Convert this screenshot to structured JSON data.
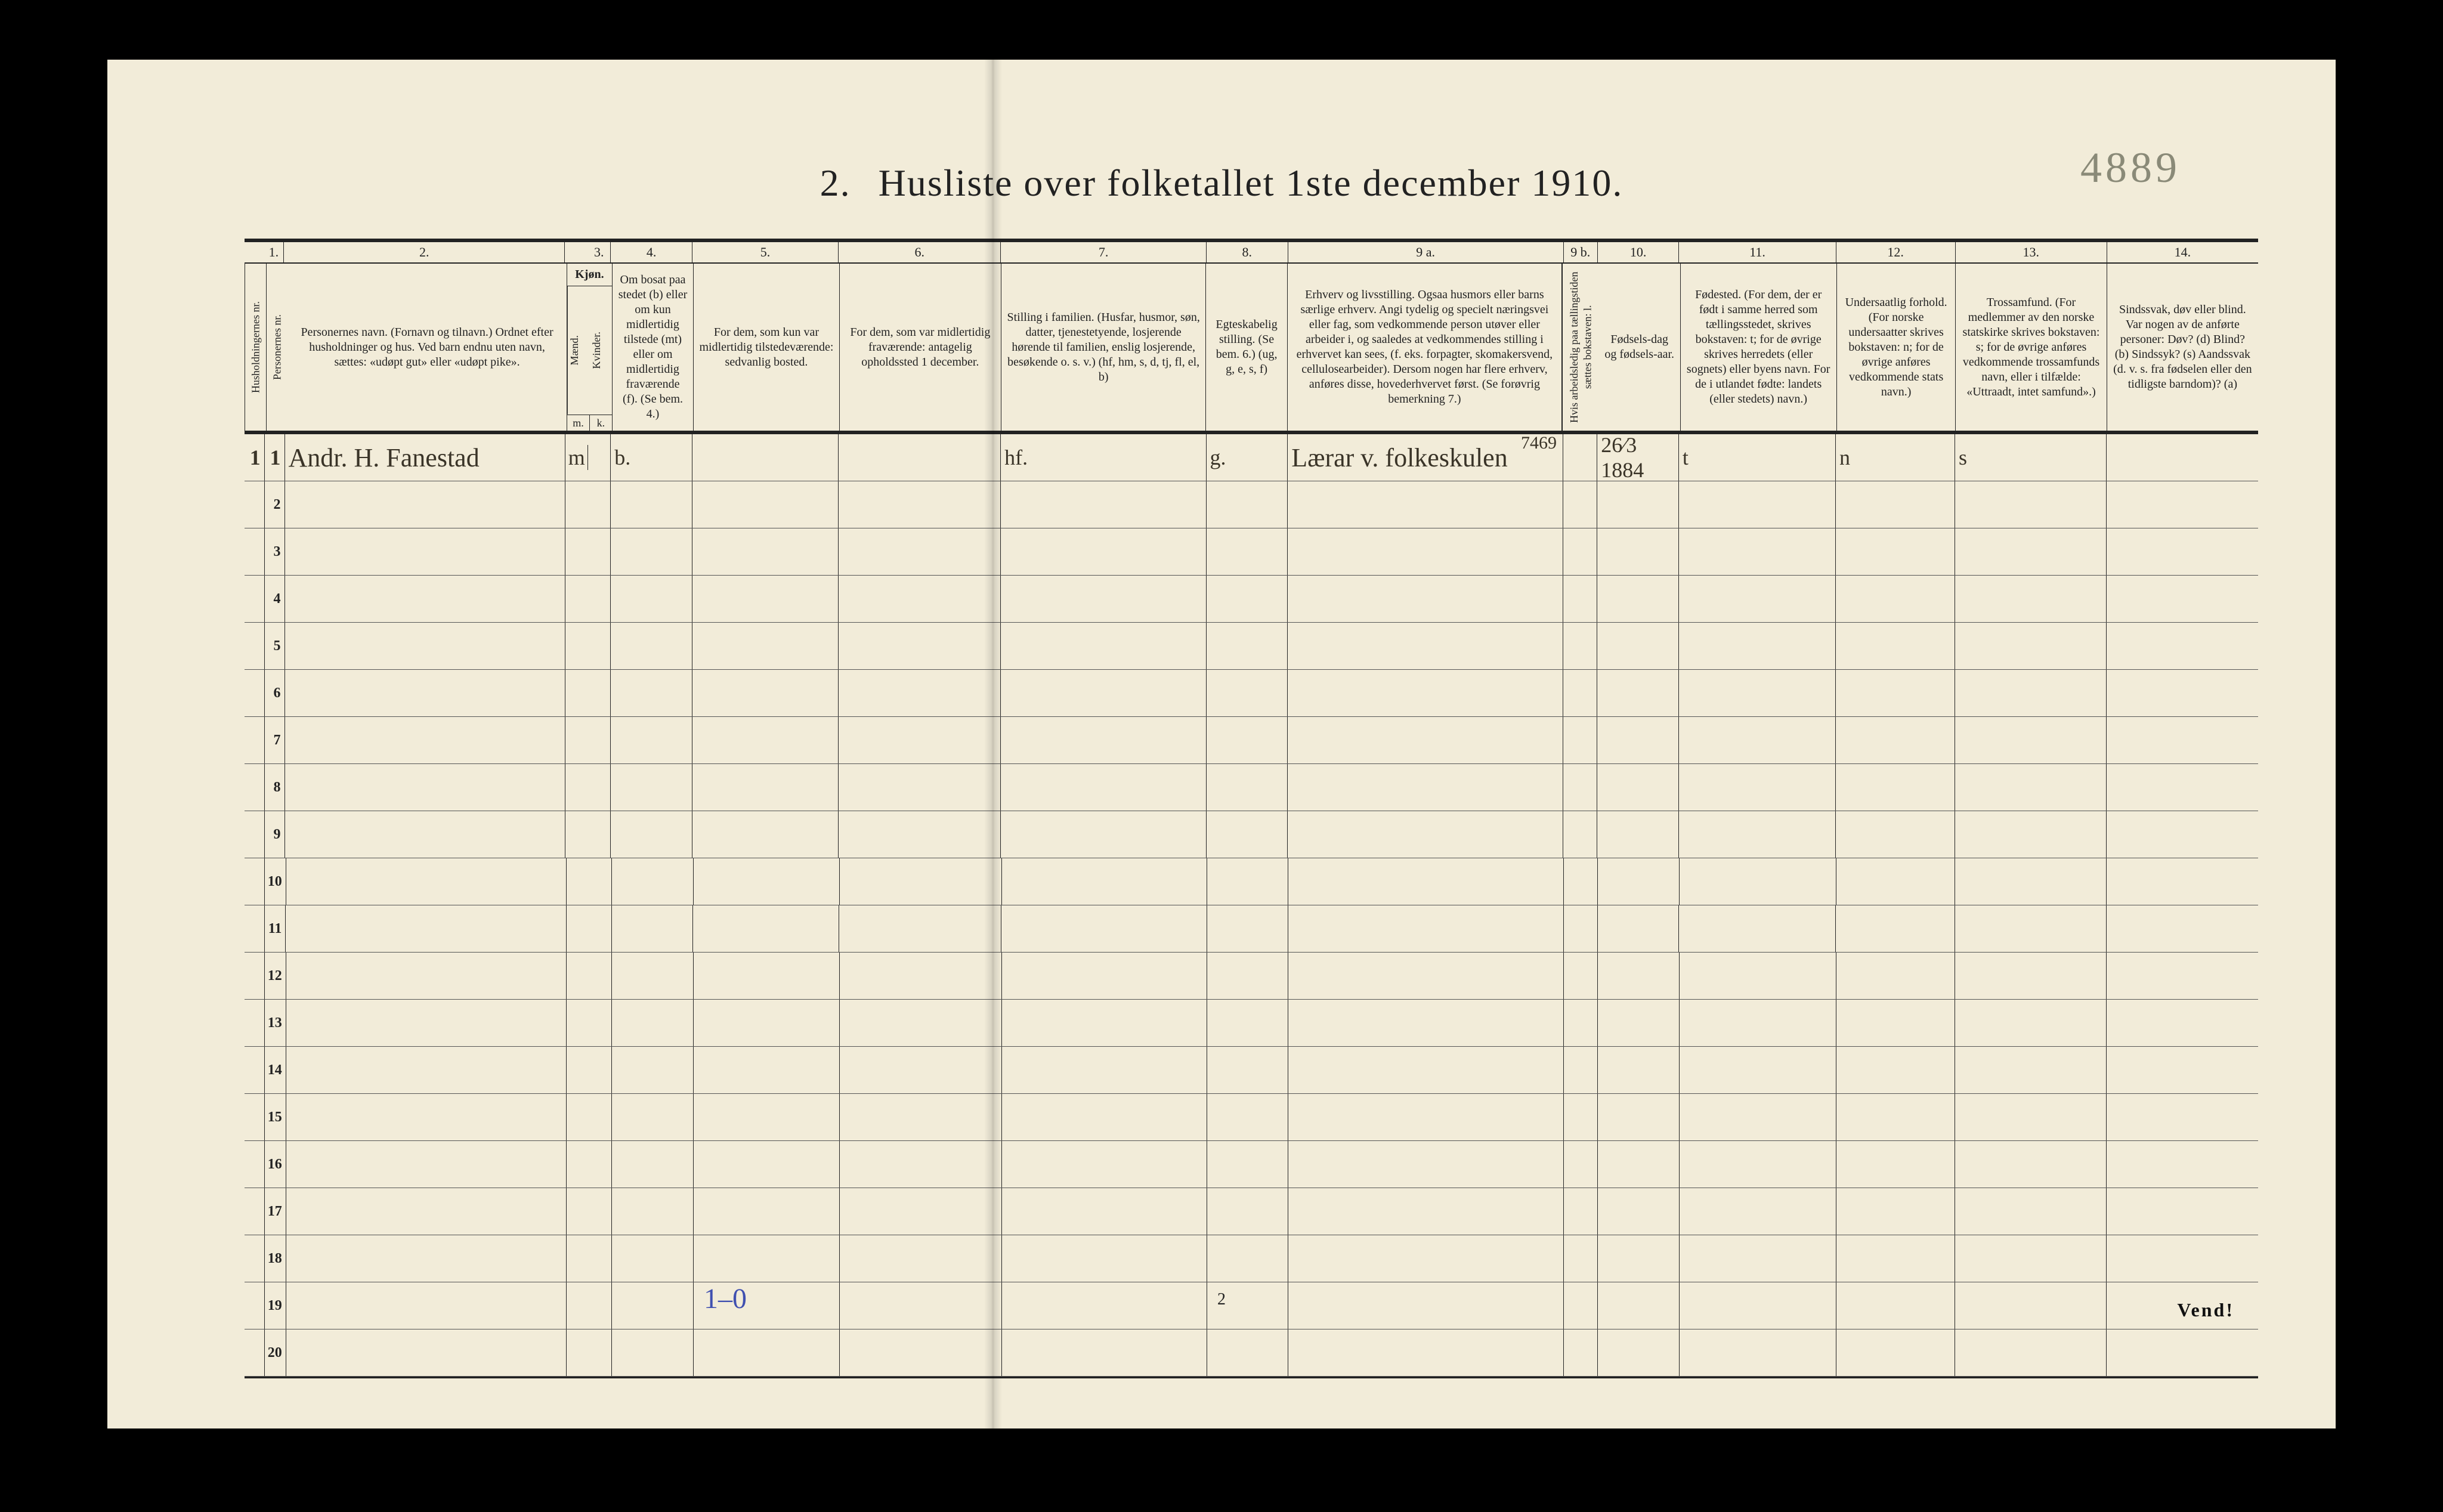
{
  "handwritten_page_ref": "4889",
  "title_number": "2.",
  "title_text": "Husliste over folketallet 1ste december 1910.",
  "footer_page_number": "2",
  "footer_turn": "Vend!",
  "tally_note": "1–0",
  "columns": {
    "group_labels": [
      "1.",
      "2.",
      "3.",
      "4.",
      "5.",
      "6.",
      "7.",
      "8.",
      "9 a.",
      "9 b.",
      "10.",
      "11.",
      "12.",
      "13.",
      "14."
    ],
    "h1a": "Husholdningernes nr.",
    "h1b": "Personernes nr.",
    "h2": "Personernes navn.\n(Fornavn og tilnavn.)\nOrdnet efter husholdninger og hus.\nVed barn endnu uten navn, sættes: «udøpt gut» eller «udøpt pike».",
    "h3_top": "Kjøn.",
    "h3_m": "Mænd.",
    "h3_k": "Kvinder.",
    "h3_m_ab": "m.",
    "h3_k_ab": "k.",
    "h4": "Om bosat paa stedet (b) eller om kun midlertidig tilstede (mt) eller om midlertidig fraværende (f). (Se bem. 4.)",
    "h5": "For dem, som kun var midlertidig tilstedeværende:\nsedvanlig bosted.",
    "h6": "For dem, som var midlertidig fraværende:\nantagelig opholdssted 1 december.",
    "h7": "Stilling i familien.\n(Husfar, husmor, søn, datter, tjenestetyende, losjerende hørende til familien, enslig losjerende, besøkende o. s. v.)\n(hf, hm, s, d, tj, fl, el, b)",
    "h8": "Egteskabelig stilling.\n(Se bem. 6.)\n(ug, g, e, s, f)",
    "h9a": "Erhverv og livsstilling.\nOgsaa husmors eller barns særlige erhverv.\nAngi tydelig og specielt næringsvei eller fag, som vedkommende person utøver eller arbeider i, og saaledes at vedkommendes stilling i erhvervet kan sees, (f. eks. forpagter, skomakersvend, cellulosearbeider). Dersom nogen har flere erhverv, anføres disse, hovederhvervet først.\n(Se forøvrig bemerkning 7.)",
    "h9b": "Hvis arbeidsledig paa tællingstiden sættes bokstaven: l.",
    "h10": "Fødsels-dag og fødsels-aar.",
    "h11": "Fødested.\n(For dem, der er født i samme herred som tællingsstedet, skrives bokstaven: t; for de øvrige skrives herredets (eller sognets) eller byens navn. For de i utlandet fødte: landets (eller stedets) navn.)",
    "h12": "Undersaatlig forhold.\n(For norske undersaatter skrives bokstaven: n; for de øvrige anføres vedkommende stats navn.)",
    "h13": "Trossamfund.\n(For medlemmer av den norske statskirke skrives bokstaven: s; for de øvrige anføres vedkommende trossamfunds navn, eller i tilfælde: «Uttraadt, intet samfund».)",
    "h14": "Sindssvak, døv eller blind.\nVar nogen av de anførte personer:\nDøv? (d)\nBlind? (b)\nSindssyk? (s)\nAandssvak (d. v. s. fra fødselen eller den tidligste barndom)? (a)"
  },
  "rows": [
    {
      "hh_no": "1",
      "pers_no": "1",
      "name": "Andr. H. Fanestad",
      "sex_m": "m",
      "sex_k": "",
      "residence": "b.",
      "temp_present_home": "",
      "temp_absent_where": "",
      "family_pos": "hf.",
      "marital": "g.",
      "occupation_suffix_code": "7469",
      "occupation": "Lærar v. folkeskulen",
      "work_idle": "",
      "birth": "26⁄3 1884",
      "birthplace": "t",
      "nationality": "n",
      "faith": "s",
      "disability": ""
    },
    {},
    {},
    {},
    {},
    {},
    {},
    {},
    {},
    {},
    {},
    {},
    {},
    {},
    {},
    {},
    {},
    {},
    {},
    {}
  ],
  "row_numbers": [
    "1",
    "2",
    "3",
    "4",
    "5",
    "6",
    "7",
    "8",
    "9",
    "10",
    "11",
    "12",
    "13",
    "14",
    "15",
    "16",
    "17",
    "18",
    "19",
    "20"
  ],
  "colors": {
    "paper": "#f2ecd9",
    "ink": "#222222",
    "pencil": "#8a8a78",
    "handwriting": "#3a3428",
    "blue_pencil": "#4050b0"
  }
}
